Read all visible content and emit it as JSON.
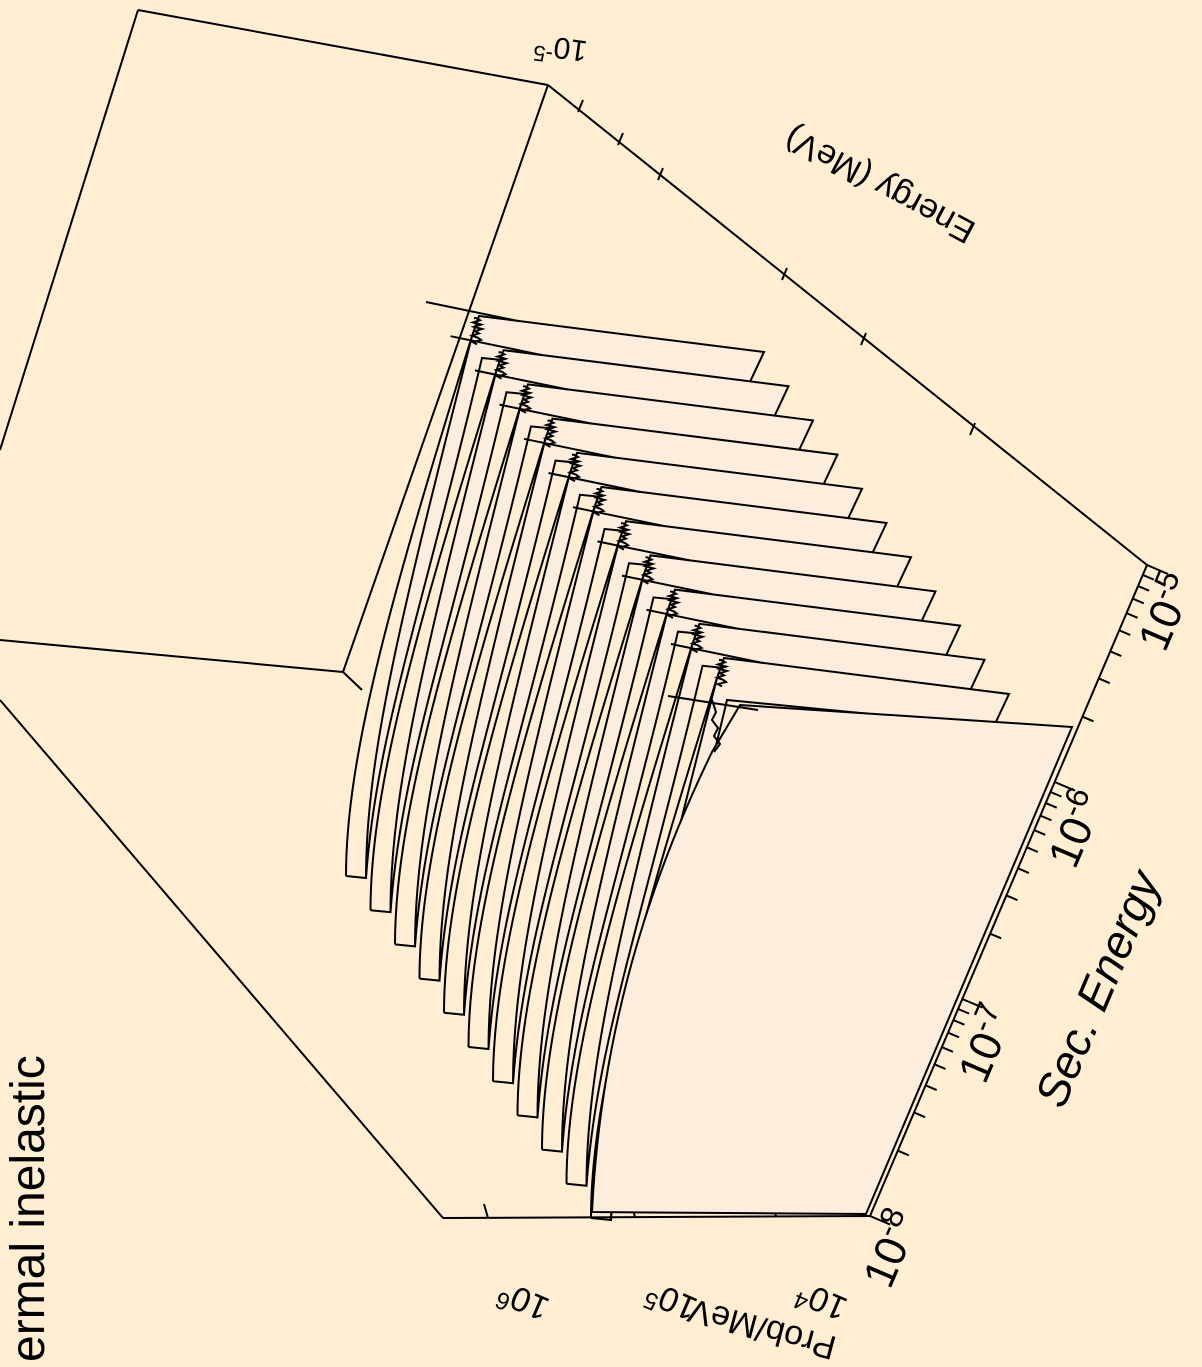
{
  "colors": {
    "background": "#FFEED2",
    "panel_fill": "#FCEDDC",
    "line": "#000000"
  },
  "title": "ermal inelastic",
  "axes": {
    "energy": {
      "label": "Energy (MeV)",
      "tick_base": "10",
      "tick_exp": "-5"
    },
    "sec_energy": {
      "label": "Sec. Energy",
      "ticks": [
        {
          "base": "10",
          "exp": "-8"
        },
        {
          "base": "10",
          "exp": "-7"
        },
        {
          "base": "10",
          "exp": "-6"
        },
        {
          "base": "10",
          "exp": "-5"
        }
      ]
    },
    "prob": {
      "label": "Prob/MeV",
      "ticks": [
        {
          "base": "10",
          "exp": "4"
        },
        {
          "base": "10",
          "exp": "5"
        },
        {
          "base": "10",
          "exp": "6"
        }
      ]
    }
  },
  "chart_data": {
    "type": "area",
    "chart_subtype": "3d waterfall",
    "title": "ermal inelastic",
    "xlabel": "Sec. Energy",
    "ylabel": "Prob/MeV",
    "zlabel": "Energy (MeV)",
    "x_scale": "log",
    "y_scale": "log",
    "xlim": [
      1e-08,
      1e-05
    ],
    "ylim": [
      10000.0,
      1000000.0
    ],
    "x_ticks": [
      "10-8",
      "10-7",
      "10-6",
      "10-5"
    ],
    "y_ticks": [
      "10 4",
      "10 5",
      "10 6"
    ],
    "curve_count": 11,
    "shape": "each curve rises smoothly with secondary energy, shows a sharp spike near 10-6 MeV and drops off beyond it"
  }
}
